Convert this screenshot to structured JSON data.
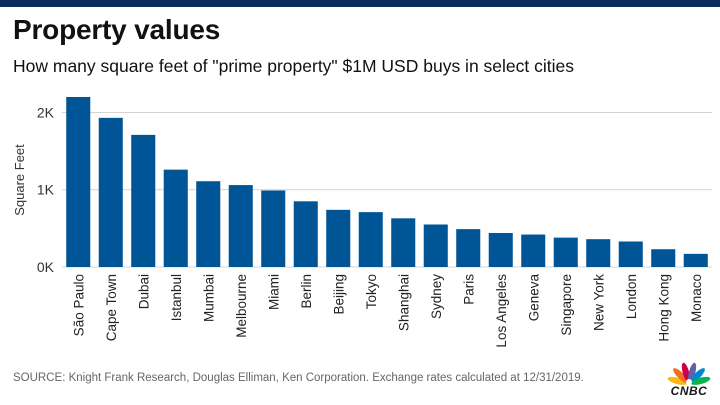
{
  "header": {
    "title": "Property values",
    "subtitle": "How many square feet of \"prime property\" $1M USD buys in select cities"
  },
  "chart_data": {
    "type": "bar",
    "title": "Property values",
    "subtitle": "How many square feet of \"prime property\" $1M USD buys in select cities",
    "xlabel": "",
    "ylabel": "Square Feet",
    "ylim": [
      0,
      2200
    ],
    "yticks": [
      0,
      1000,
      2000
    ],
    "ytick_labels": [
      "0K",
      "1K",
      "2K"
    ],
    "grid": true,
    "color": "#005596",
    "categories": [
      "São Paulo",
      "Cape Town",
      "Dubai",
      "Istanbul",
      "Mumbai",
      "Melbourne",
      "Miami",
      "Berlin",
      "Beijing",
      "Tokyo",
      "Shanghai",
      "Sydney",
      "Paris",
      "Los Angeles",
      "Geneva",
      "Singapore",
      "New York",
      "London",
      "Hong Kong",
      "Monaco"
    ],
    "values": [
      2200,
      1930,
      1710,
      1260,
      1110,
      1060,
      990,
      850,
      740,
      710,
      630,
      550,
      490,
      440,
      420,
      380,
      360,
      330,
      230,
      170
    ]
  },
  "footer": {
    "source": "SOURCE: Knight Frank Research, Douglas Elliman, Ken Corporation. Exchange rates calculated at 12/31/2019.",
    "brand": "CNBC"
  }
}
